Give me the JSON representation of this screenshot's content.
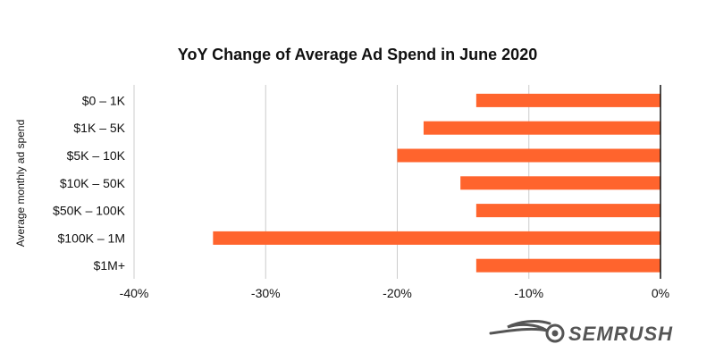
{
  "chart_data": {
    "type": "bar",
    "orientation": "horizontal",
    "title": "YoY Change of Average Ad Spend in June 2020",
    "xlabel": "",
    "ylabel": "Average monthly ad spend",
    "categories": [
      "$0 – 1K",
      "$1K – 5K",
      "$5K – 10K",
      "$10K – 50K",
      "$50K – 100K",
      "$100K – 1M",
      "$1M+"
    ],
    "values": [
      -14,
      -18,
      -20,
      -15.2,
      -14,
      -34,
      -14
    ],
    "xlim": [
      -40,
      0
    ],
    "xticks": [
      -40,
      -30,
      -20,
      -10,
      0
    ],
    "tick_labels": [
      "-40%",
      "-30%",
      "-20%",
      "-10%",
      "0%"
    ],
    "grid": true,
    "bar_color": "#ff642d",
    "grid_color": "#cccccc",
    "axis_color": "#111111"
  },
  "brand": {
    "name": "SEMRUSH",
    "color": "#555555",
    "icon": "semrush-logo-icon"
  }
}
